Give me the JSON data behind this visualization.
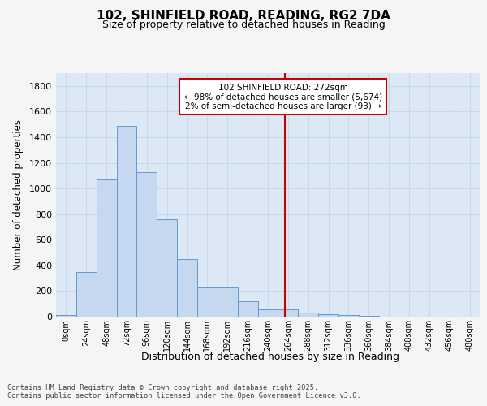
{
  "title_line1": "102, SHINFIELD ROAD, READING, RG2 7DA",
  "title_line2": "Size of property relative to detached houses in Reading",
  "xlabel": "Distribution of detached houses by size in Reading",
  "ylabel": "Number of detached properties",
  "bar_labels": [
    "0sqm",
    "24sqm",
    "48sqm",
    "72sqm",
    "96sqm",
    "120sqm",
    "144sqm",
    "168sqm",
    "192sqm",
    "216sqm",
    "240sqm",
    "264sqm",
    "288sqm",
    "312sqm",
    "336sqm",
    "360sqm",
    "384sqm",
    "408sqm",
    "432sqm",
    "456sqm",
    "480sqm"
  ],
  "bar_values": [
    10,
    350,
    1070,
    1490,
    1130,
    760,
    450,
    230,
    230,
    120,
    60,
    60,
    30,
    20,
    15,
    8,
    3,
    2,
    1,
    0,
    0
  ],
  "bar_color": "#c5d8f0",
  "bar_edge_color": "#6699cc",
  "ylim": [
    0,
    1900
  ],
  "yticks": [
    0,
    200,
    400,
    600,
    800,
    1000,
    1200,
    1400,
    1600,
    1800
  ],
  "vline_x": 272,
  "marker_label_line1": "102 SHINFIELD ROAD: 272sqm",
  "marker_label_line2": "← 98% of detached houses are smaller (5,674)",
  "marker_label_line3": "2% of semi-detached houses are larger (93) →",
  "vline_color": "#cc0000",
  "annotation_box_edgecolor": "#cc0000",
  "bg_color": "#dce8f5",
  "grid_color": "#c8d8e8",
  "fig_bg_color": "#f5f5f5",
  "footnote_line1": "Contains HM Land Registry data © Crown copyright and database right 2025.",
  "footnote_line2": "Contains public sector information licensed under the Open Government Licence v3.0.",
  "bin_width": 24
}
